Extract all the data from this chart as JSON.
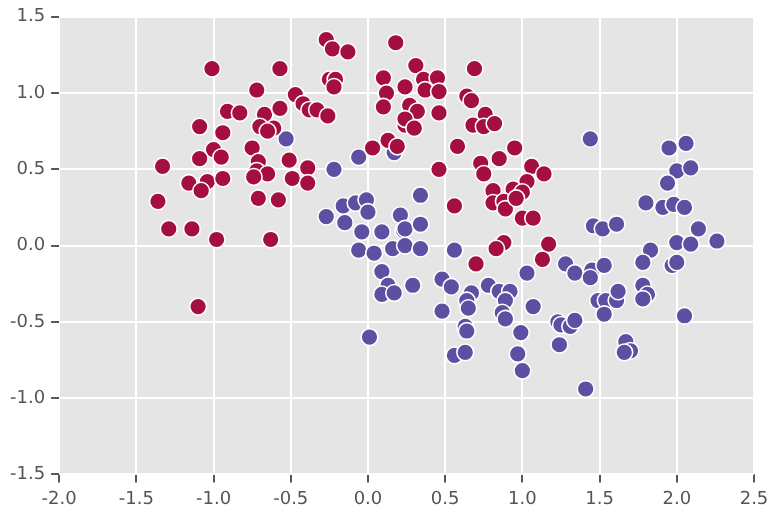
{
  "chart_data": {
    "type": "scatter",
    "xlim": [
      -2.0,
      2.5
    ],
    "ylim": [
      -1.5,
      1.5
    ],
    "xticks": [
      {
        "value": -2,
        "label": "-2.0"
      },
      -1.5,
      {
        "value": -1,
        "label": "-1.0"
      },
      -0.5,
      {
        "value": 0,
        "label": "0.0"
      },
      0.5,
      {
        "value": 1,
        "label": "1.0"
      },
      1.5,
      {
        "value": 2,
        "label": "2.0"
      },
      2.5
    ],
    "yticks": [
      -1.5,
      {
        "value": -1,
        "label": "-1.0"
      },
      -0.5,
      {
        "value": 0,
        "label": "0.0"
      },
      0.5,
      {
        "value": 1,
        "label": "1.0"
      },
      1.5
    ],
    "grid": true,
    "marker": "circle",
    "legend": false,
    "series": [
      {
        "color": "#a50f3f",
        "x": [
          -0.27,
          -0.23,
          -0.13,
          0.18,
          -1.01,
          -0.57,
          -0.72,
          -0.25,
          -0.21,
          -0.22,
          0.1,
          0.12,
          0.24,
          -0.47,
          -0.42,
          -0.38,
          -0.33,
          -0.26,
          0.1,
          -0.91,
          -0.83,
          -0.67,
          -0.57,
          -1.09,
          -0.94,
          -0.7,
          -0.61,
          -0.65,
          0.24,
          -0.75,
          -1.0,
          -0.95,
          -1.09,
          -0.71,
          -0.51,
          -1.33,
          -0.72,
          -0.65,
          -0.39,
          0.03,
          0.13,
          0.19,
          -1.16,
          -1.04,
          -0.94,
          -0.74,
          -0.49,
          -0.39,
          -1.08,
          -1.36,
          -0.71,
          -0.58,
          -1.29,
          -1.14,
          -0.98,
          -0.63,
          -1.1,
          0.31,
          0.36,
          0.45,
          0.37,
          0.46,
          0.69,
          0.27,
          0.32,
          0.46,
          0.64,
          0.67,
          0.76,
          0.68,
          0.75,
          0.82,
          0.24,
          0.3,
          0.58,
          0.95,
          0.73,
          0.85,
          0.75,
          0.46,
          1.06,
          1.14,
          1.03,
          0.81,
          0.94,
          1.0,
          0.81,
          0.88,
          0.89,
          0.96,
          0.56,
          1.0,
          1.07,
          1.17,
          0.88,
          0.83,
          0.7,
          1.13
        ],
        "values": [
          1.35,
          1.29,
          1.27,
          1.33,
          1.16,
          1.16,
          1.02,
          1.09,
          1.09,
          1.04,
          1.1,
          1.0,
          1.04,
          0.99,
          0.93,
          0.89,
          0.89,
          0.85,
          0.91,
          0.88,
          0.87,
          0.86,
          0.9,
          0.78,
          0.74,
          0.78,
          0.77,
          0.75,
          0.79,
          0.64,
          0.63,
          0.58,
          0.57,
          0.55,
          0.56,
          0.52,
          0.49,
          0.47,
          0.51,
          0.64,
          0.69,
          0.65,
          0.41,
          0.42,
          0.44,
          0.45,
          0.44,
          0.41,
          0.36,
          0.29,
          0.31,
          0.3,
          0.11,
          0.11,
          0.04,
          0.04,
          -0.4,
          1.18,
          1.09,
          1.1,
          1.02,
          1.01,
          1.16,
          0.92,
          0.88,
          0.87,
          0.98,
          0.95,
          0.86,
          0.79,
          0.78,
          0.8,
          0.83,
          0.77,
          0.65,
          0.64,
          0.54,
          0.57,
          0.47,
          0.5,
          0.52,
          0.47,
          0.42,
          0.36,
          0.37,
          0.35,
          0.28,
          0.29,
          0.24,
          0.31,
          0.26,
          0.18,
          0.18,
          0.01,
          0.02,
          -0.02,
          -0.12,
          -0.09
        ]
      },
      {
        "color": "#5e4fa2",
        "x": [
          -0.53,
          -0.06,
          -0.22,
          0.17,
          -0.27,
          -0.16,
          -0.08,
          -0.01,
          0.0,
          0.21,
          -0.15,
          -0.04,
          0.09,
          0.23,
          -0.06,
          0.04,
          0.16,
          0.09,
          0.13,
          0.09,
          0.17,
          0.01,
          0.24,
          1.44,
          1.95,
          2.06,
          2.0,
          2.09,
          1.94,
          0.34,
          0.24,
          0.34,
          1.8,
          1.91,
          1.98,
          2.05,
          1.46,
          1.52,
          1.61,
          2.14,
          0.56,
          0.34,
          2.0,
          2.09,
          2.26,
          1.83,
          0.29,
          0.48,
          0.54,
          0.67,
          0.64,
          0.65,
          0.48,
          0.78,
          0.85,
          0.92,
          0.89,
          0.87,
          0.89,
          1.03,
          1.07,
          0.63,
          0.64,
          0.99,
          0.56,
          0.63,
          0.97,
          1.0,
          1.28,
          1.34,
          1.45,
          1.44,
          1.53,
          1.23,
          1.25,
          1.31,
          1.34,
          1.24,
          1.41,
          1.49,
          1.54,
          1.61,
          1.62,
          1.53,
          1.78,
          1.97,
          2.0,
          1.78,
          1.81,
          1.78,
          2.05,
          1.67,
          1.7,
          1.66
        ],
        "values": [
          0.7,
          0.58,
          0.5,
          0.61,
          0.19,
          0.26,
          0.28,
          0.3,
          0.22,
          0.2,
          0.15,
          0.09,
          0.09,
          0.1,
          -0.03,
          -0.05,
          -0.02,
          -0.17,
          -0.26,
          -0.32,
          -0.31,
          -0.6,
          0.0,
          0.7,
          0.64,
          0.67,
          0.49,
          0.51,
          0.41,
          0.33,
          0.11,
          0.14,
          0.28,
          0.25,
          0.27,
          0.25,
          0.13,
          0.11,
          0.14,
          0.11,
          -0.03,
          -0.02,
          0.02,
          0.01,
          0.03,
          -0.03,
          -0.26,
          -0.22,
          -0.27,
          -0.31,
          -0.36,
          -0.41,
          -0.43,
          -0.26,
          -0.3,
          -0.3,
          -0.36,
          -0.44,
          -0.48,
          -0.18,
          -0.4,
          -0.53,
          -0.56,
          -0.57,
          -0.72,
          -0.7,
          -0.71,
          -0.82,
          -0.12,
          -0.18,
          -0.16,
          -0.21,
          -0.13,
          -0.5,
          -0.52,
          -0.53,
          -0.49,
          -0.65,
          -0.94,
          -0.36,
          -0.36,
          -0.36,
          -0.3,
          -0.45,
          -0.11,
          -0.13,
          -0.11,
          -0.26,
          -0.32,
          -0.35,
          -0.46,
          -0.63,
          -0.69,
          -0.7
        ]
      }
    ]
  }
}
